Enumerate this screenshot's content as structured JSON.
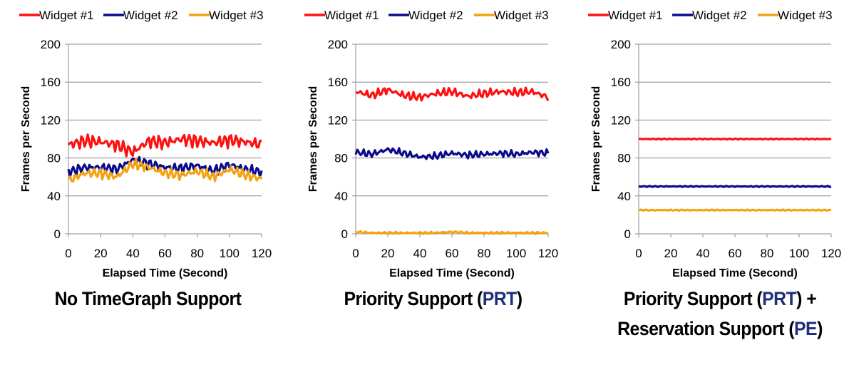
{
  "colors": {
    "widget1": "#ff1010",
    "widget2": "#0a0a8c",
    "widget3": "#f5a20f",
    "highlight": "#1f2f78"
  },
  "chart_data": [
    {
      "type": "line",
      "legend": "top",
      "xlabel": "Elapsed Time (Second)",
      "ylabel": "Frames per Second",
      "xlim": [
        0,
        120
      ],
      "ylim": [
        0,
        200
      ],
      "xticks": [
        0,
        20,
        40,
        60,
        80,
        100,
        120
      ],
      "yticks": [
        0,
        40,
        80,
        120,
        160,
        200
      ],
      "grid": "horizontal",
      "x": [
        0,
        10,
        20,
        30,
        40,
        50,
        60,
        70,
        80,
        90,
        100,
        110,
        120
      ],
      "series": [
        {
          "name": "Widget #1",
          "values": [
            94,
            98,
            97,
            94,
            86,
            98,
            96,
            100,
            98,
            96,
            99,
            97,
            94
          ]
        },
        {
          "name": "Widget #2",
          "values": [
            65,
            70,
            70,
            68,
            78,
            74,
            70,
            69,
            72,
            66,
            73,
            68,
            65
          ]
        },
        {
          "name": "Widget #3",
          "values": [
            56,
            64,
            64,
            60,
            74,
            70,
            64,
            62,
            66,
            60,
            68,
            62,
            58
          ]
        }
      ],
      "caption": [
        "No TimeGraph Support"
      ]
    },
    {
      "type": "line",
      "legend": "top",
      "xlabel": "Elapsed Time (Second)",
      "ylabel": "Frames per Second",
      "xlim": [
        0,
        120
      ],
      "ylim": [
        0,
        200
      ],
      "xticks": [
        0,
        20,
        40,
        60,
        80,
        100,
        120
      ],
      "yticks": [
        0,
        40,
        80,
        120,
        160,
        200
      ],
      "grid": "horizontal",
      "x": [
        0,
        10,
        20,
        30,
        40,
        50,
        60,
        70,
        80,
        90,
        100,
        110,
        120
      ],
      "series": [
        {
          "name": "Widget #1",
          "values": [
            150,
            146,
            152,
            146,
            144,
            148,
            150,
            145,
            148,
            150,
            149,
            150,
            144
          ]
        },
        {
          "name": "Widget #2",
          "values": [
            86,
            84,
            89,
            85,
            81,
            82,
            85,
            83,
            84,
            85,
            84,
            86,
            85
          ]
        },
        {
          "name": "Widget #3",
          "values": [
            2,
            1,
            1,
            1,
            1,
            1,
            2,
            1,
            1,
            1,
            1,
            1,
            1
          ]
        }
      ],
      "caption": [
        "Priority Support (",
        "PRT",
        ")"
      ]
    },
    {
      "type": "line",
      "legend": "top",
      "xlabel": "Elapsed Time (Second)",
      "ylabel": "Frames per Second",
      "xlim": [
        0,
        120
      ],
      "ylim": [
        0,
        200
      ],
      "xticks": [
        0,
        20,
        40,
        60,
        80,
        100,
        120
      ],
      "yticks": [
        0,
        40,
        80,
        120,
        160,
        200
      ],
      "grid": "horizontal",
      "x": [
        0,
        10,
        20,
        30,
        40,
        50,
        60,
        70,
        80,
        90,
        100,
        110,
        120
      ],
      "series": [
        {
          "name": "Widget #1",
          "values": [
            100,
            100,
            100,
            100,
            100,
            100,
            100,
            100,
            100,
            100,
            100,
            100,
            100
          ]
        },
        {
          "name": "Widget #2",
          "values": [
            50,
            50,
            50,
            50,
            50,
            50,
            50,
            50,
            50,
            50,
            50,
            50,
            50
          ]
        },
        {
          "name": "Widget #3",
          "values": [
            25,
            25,
            25,
            25,
            25,
            25,
            25,
            25,
            25,
            25,
            25,
            25,
            25
          ]
        }
      ],
      "caption": [
        "Priority Support (",
        "PRT",
        ") +",
        "Reservation Support (",
        "PE",
        ")"
      ]
    }
  ]
}
